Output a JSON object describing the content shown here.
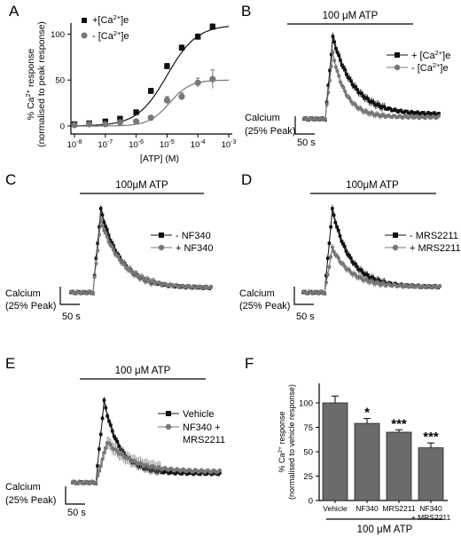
{
  "panels": {
    "A": "A",
    "B": "B",
    "C": "C",
    "D": "D",
    "E": "E",
    "F": "F"
  },
  "scale": {
    "calcium": "Calcium",
    "peak": "(25% Peak)",
    "time": "50 s"
  },
  "colors": {
    "black": "#111111",
    "grey": "#777777",
    "bar": "#6b6b6b"
  },
  "chart_data": [
    {
      "panel": "A",
      "type": "scatter",
      "x_scale": "log",
      "xlabel": "[ATP] (M)",
      "ylabel_line1": "% Ca2+ response",
      "ylabel_line2": "(normalised to peak response)",
      "xlim": [
        1e-08,
        0.001
      ],
      "ylim": [
        0,
        110
      ],
      "y_ticks": [
        0,
        50,
        100
      ],
      "x_ticks": [
        {
          "value": 1e-08,
          "label": "10-8"
        },
        {
          "value": 1e-07,
          "label": "10-7"
        },
        {
          "value": 1e-06,
          "label": "10-6"
        },
        {
          "value": 1e-05,
          "label": "10-5"
        },
        {
          "value": 0.0001,
          "label": "10-4"
        },
        {
          "value": 0.001,
          "label": "10-3"
        }
      ],
      "legend_position": "top-left",
      "series": [
        {
          "name": "+[Ca2+]e",
          "marker": "square",
          "x": [
            1e-08,
            3e-08,
            1e-07,
            3e-07,
            1e-06,
            3e-06,
            1e-05,
            3e-05,
            0.0001,
            0.0003
          ],
          "y": [
            2,
            3,
            5,
            8,
            15,
            38,
            65,
            85,
            97,
            108
          ],
          "err": [
            1,
            1,
            1.5,
            2,
            2,
            3,
            3,
            3,
            3,
            3
          ]
        },
        {
          "name": "- [Ca2+]e",
          "marker": "circle",
          "x": [
            1e-08,
            3e-08,
            1e-07,
            3e-07,
            1e-06,
            3e-06,
            1e-05,
            3e-05,
            0.0001,
            0.0003
          ],
          "y": [
            1,
            2,
            2,
            4,
            5,
            9,
            28,
            32,
            47,
            51
          ],
          "err": [
            1,
            1,
            1,
            1,
            1,
            2,
            4,
            4,
            5,
            10
          ]
        }
      ],
      "fits": [
        {
          "series": "+[Ca2+]e",
          "top": 110,
          "ec50": 1e-05,
          "hill": 0.9
        },
        {
          "series": "- [Ca2+]e",
          "top": 50,
          "ec50": 1.2e-05,
          "hill": 1.3
        }
      ]
    },
    {
      "panel": "B",
      "type": "line",
      "stimulus": "100 μM ATP",
      "legend_position": "right",
      "series": [
        {
          "name": "+ [Ca2+]e",
          "marker": "square",
          "peak": 1.0,
          "tau": 45,
          "rise": 5,
          "baseline": 0.08,
          "tail": 0.05,
          "err": 0.045
        },
        {
          "name": "- [Ca2+]e",
          "marker": "circle",
          "peak": 0.82,
          "tau": 28,
          "rise": 5,
          "baseline": 0.08,
          "tail": 0.02,
          "err": 0.035
        }
      ]
    },
    {
      "panel": "C",
      "type": "line",
      "stimulus": "100μM ATP",
      "legend_position": "right",
      "series": [
        {
          "name": "- NF340",
          "marker": "square",
          "peak": 1.0,
          "tau": 40,
          "rise": 5,
          "baseline": 0.1,
          "tail": 0.05,
          "err": 0.04
        },
        {
          "name": "+ NF340",
          "marker": "circle",
          "peak": 0.88,
          "tau": 44,
          "rise": 5,
          "baseline": 0.1,
          "tail": 0.05,
          "err": 0.035
        }
      ]
    },
    {
      "panel": "D",
      "type": "line",
      "stimulus": "100μM ATP",
      "legend_position": "right",
      "series": [
        {
          "name": "- MRS2211",
          "marker": "square",
          "peak": 1.0,
          "tau": 38,
          "rise": 5,
          "baseline": 0.1,
          "tail": 0.06,
          "err": 0.04
        },
        {
          "name": "+ MRS2211",
          "marker": "circle",
          "peak": 0.58,
          "tau": 40,
          "rise": 5,
          "baseline": 0.1,
          "tail": 0.06,
          "err": 0.035
        }
      ]
    },
    {
      "panel": "E",
      "type": "line",
      "stimulus": "100 μM ATP",
      "legend_position": "right",
      "series": [
        {
          "name": "Vehicle",
          "marker": "square",
          "peak": 1.0,
          "tau": 30,
          "rise": 5,
          "baseline": 0.1,
          "tail": 0.1,
          "err": 0.04
        },
        {
          "name": "NF340 + MRS2211",
          "marker": "circle",
          "peak": 0.55,
          "tau": 48,
          "rise": 7,
          "baseline": 0.1,
          "tail": 0.12,
          "err": 0.07
        }
      ]
    },
    {
      "panel": "F",
      "type": "bar",
      "ylabel_line1": "% Ca2+ response",
      "ylabel_line2": "(normalised to vehicle response)",
      "ylim": [
        0,
        120
      ],
      "y_ticks": [
        0,
        25,
        50,
        75,
        100
      ],
      "categories": [
        "Vehicle",
        "NF340",
        "MRS2211",
        "NF340 + MRS2211"
      ],
      "values": [
        100,
        79,
        70,
        54
      ],
      "errors": [
        7,
        5,
        2.5,
        5
      ],
      "significance": [
        "",
        "*",
        "***",
        "***"
      ],
      "group_label": "100 μM ATP"
    }
  ]
}
